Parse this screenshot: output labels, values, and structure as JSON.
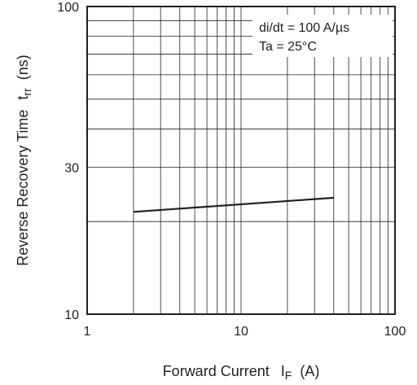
{
  "chart_data": {
    "type": "line",
    "x_scale": "log",
    "y_scale": "log",
    "xlim": [
      1,
      100
    ],
    "ylim": [
      10,
      100
    ],
    "grid": true,
    "x_ticks": [
      1,
      10,
      100
    ],
    "x_tick_labels": [
      "1",
      "10",
      "100"
    ],
    "y_ticks": [
      10,
      30,
      100
    ],
    "y_tick_labels": [
      "10",
      "30",
      "100"
    ],
    "xlabel": {
      "main": "Forward Current",
      "symbol": "I",
      "sub": "F",
      "unit": "(A)"
    },
    "ylabel": {
      "main": "Reverse Recovery Time",
      "symbol": "t",
      "sub": "rr",
      "unit": "(ns)"
    },
    "annotations": [
      "di/dt = 100 A/µs",
      "Ta = 25°C"
    ],
    "series": [
      {
        "x": [
          2,
          40
        ],
        "y": [
          21.5,
          23.9
        ]
      }
    ]
  }
}
